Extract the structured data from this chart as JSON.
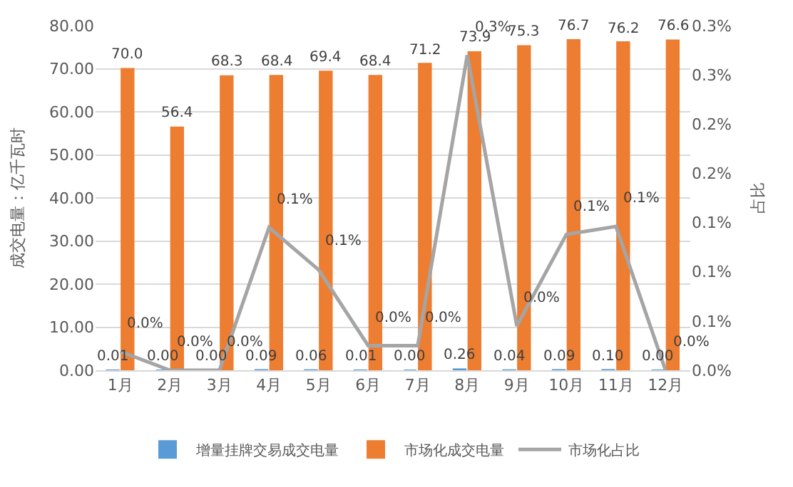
{
  "chart_data": {
    "type": "bar",
    "categories": [
      "1月",
      "2月",
      "3月",
      "4月",
      "5月",
      "6月",
      "7月",
      "8月",
      "9月",
      "10月",
      "11月",
      "12月"
    ],
    "ylabel": "成交电量：亿千瓦时",
    "y2label": "占比",
    "series": [
      {
        "name": "增量挂牌交易成交电量",
        "color": "#5b9bd5",
        "values": [
          0.01,
          0.0,
          0.0,
          0.09,
          0.06,
          0.01,
          0.0,
          0.26,
          0.04,
          0.09,
          0.1,
          0.0
        ],
        "value_labels": [
          "0.01",
          "0.00",
          "0.00",
          "0.09",
          "0.06",
          "0.01",
          "0.00",
          "0.26",
          "0.04",
          "0.09",
          "0.10",
          "0.00"
        ]
      },
      {
        "name": "市场化成交电量",
        "color": "#ed7d31",
        "values": [
          70.0,
          56.4,
          68.3,
          68.4,
          69.4,
          68.4,
          71.2,
          73.9,
          75.3,
          76.7,
          76.2,
          76.6
        ],
        "value_labels": [
          "70.0",
          "56.4",
          "68.3",
          "68.4",
          "69.4",
          "68.4",
          "71.2",
          "73.9",
          "75.3",
          "76.7",
          "76.2",
          "76.6"
        ]
      },
      {
        "name": "市场化占比",
        "type": "line",
        "axis": "y2",
        "color": "#a5a5a5",
        "line_style": "solid",
        "values": [
          0.019,
          0.0,
          0.0,
          0.145,
          0.102,
          0.025,
          0.025,
          0.32,
          0.045,
          0.138,
          0.146,
          0.0
        ],
        "value_labels": [
          "0.0%",
          "0.0%",
          "0.0%",
          "0.1%",
          "0.1%",
          "0.0%",
          "0.0%",
          "0.3%",
          "0.0%",
          "0.1%",
          "0.1%",
          "0.0%"
        ]
      }
    ],
    "ylim": [
      0,
      80
    ],
    "yticks": [
      {
        "value": 0,
        "label": "0.00"
      },
      {
        "value": 10,
        "label": "10.00"
      },
      {
        "value": 20,
        "label": "20.00"
      },
      {
        "value": 30,
        "label": "30.00"
      },
      {
        "value": 40,
        "label": "40.00"
      },
      {
        "value": 50,
        "label": "50.00"
      },
      {
        "value": 60,
        "label": "60.00"
      },
      {
        "value": 70,
        "label": "70.00"
      },
      {
        "value": 80,
        "label": "80.00"
      }
    ],
    "y2lim": [
      0,
      0.35
    ],
    "y2ticks": [
      {
        "value": 0,
        "label": "0.0%"
      },
      {
        "value": 0.05,
        "label": "0.1%"
      },
      {
        "value": 0.1,
        "label": "0.1%"
      },
      {
        "value": 0.15,
        "label": "0.1%"
      },
      {
        "value": 0.2,
        "label": "0.2%"
      },
      {
        "value": 0.25,
        "label": "0.2%"
      },
      {
        "value": 0.3,
        "label": "0.3%"
      },
      {
        "value": 0.35,
        "label": "0.3%"
      }
    ],
    "grid": "y",
    "legend": "bottom"
  }
}
